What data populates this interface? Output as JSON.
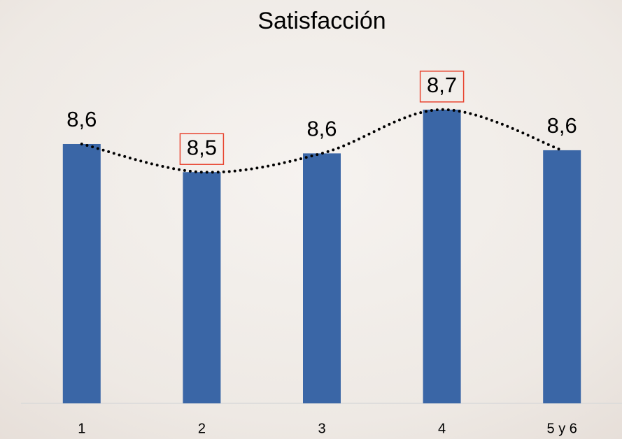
{
  "chart_data": {
    "type": "bar",
    "title": "Satisfacción",
    "categories": [
      "1",
      "2",
      "3",
      "4",
      "5 y 6"
    ],
    "values": [
      8.63,
      8.54,
      8.6,
      8.74,
      8.61
    ],
    "value_labels": [
      "8,6",
      "8,5",
      "8,6",
      "8,7",
      "8,6"
    ],
    "color": "#3a66a6",
    "ylim": [
      7.8,
      8.8
    ],
    "trendline": true,
    "highlight": [
      1,
      3
    ],
    "highlight_color": "#e8432e"
  }
}
